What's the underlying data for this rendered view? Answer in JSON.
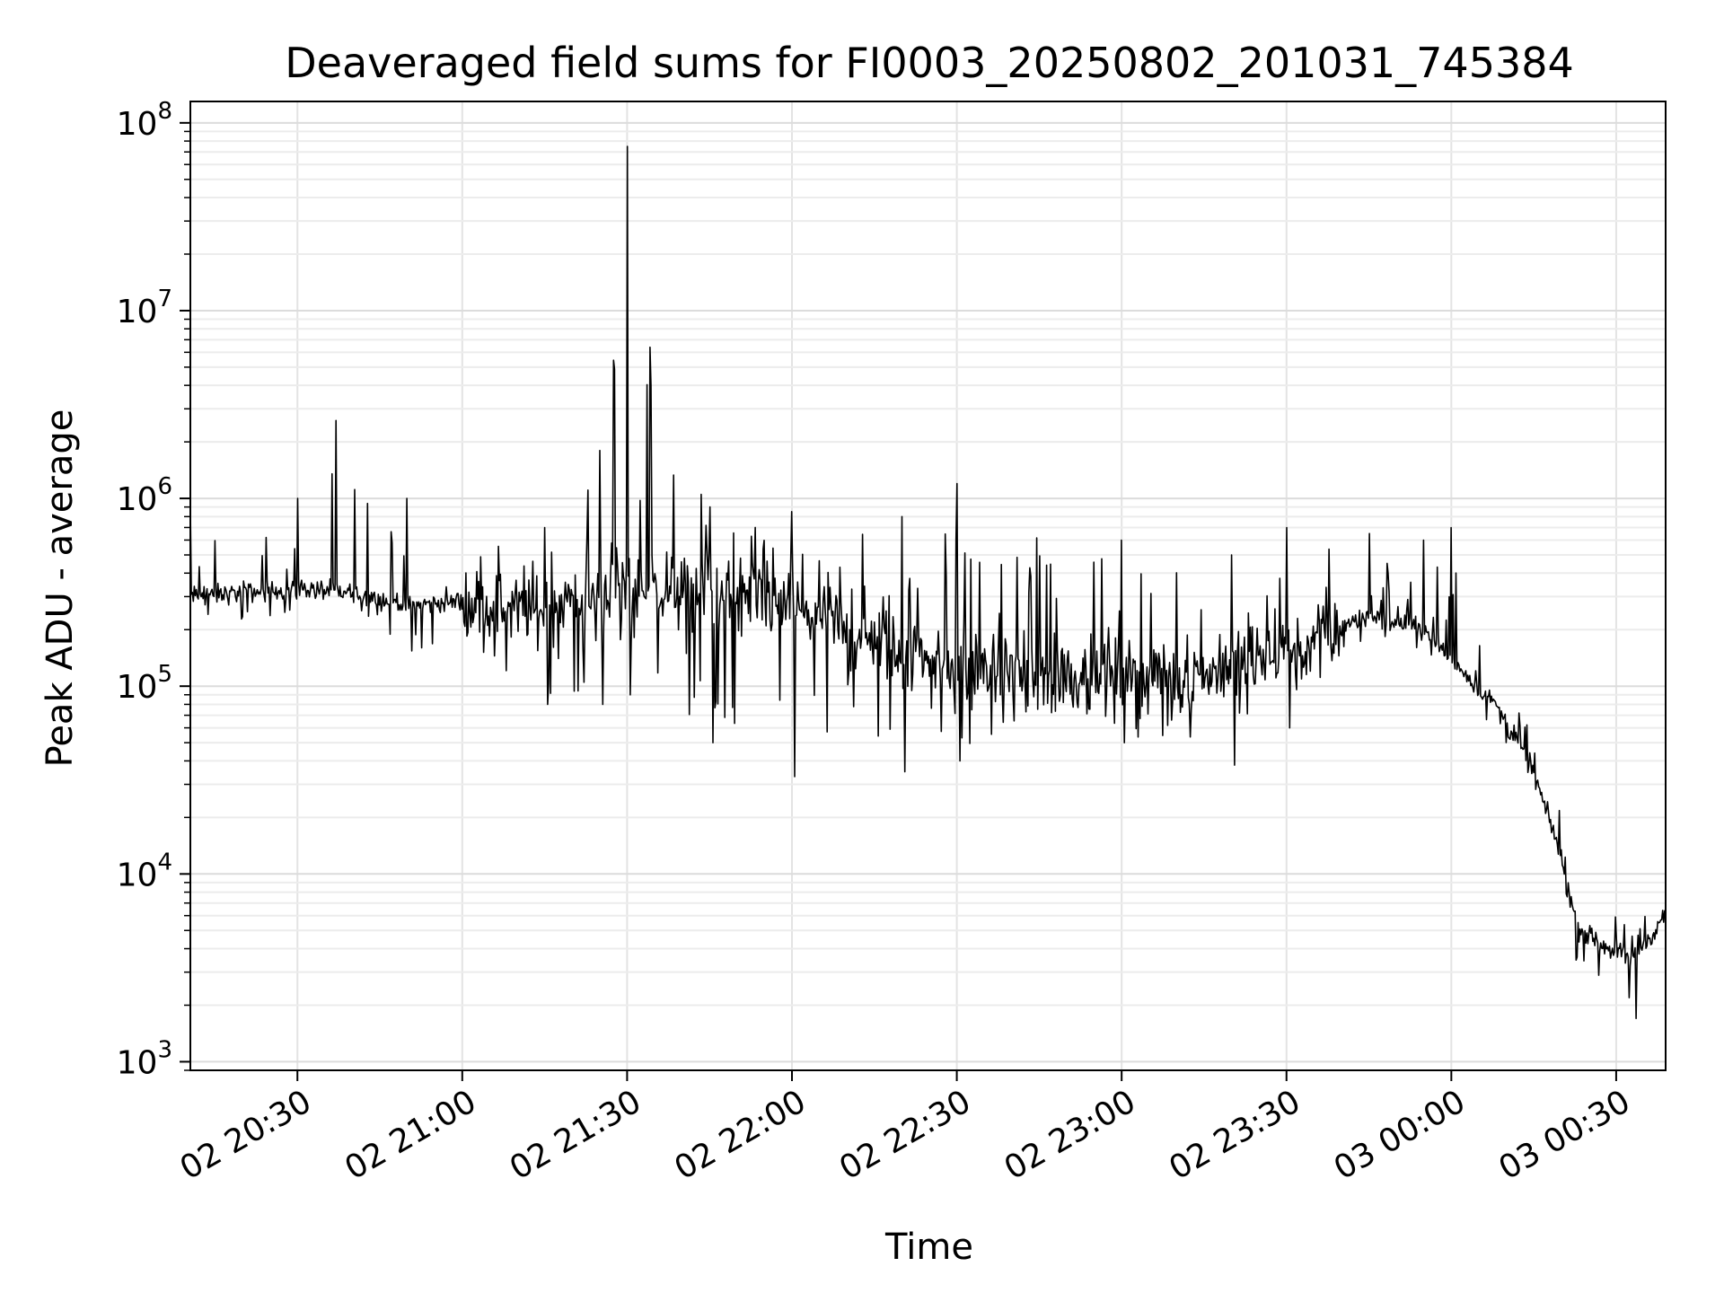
{
  "chart_data": {
    "type": "line",
    "title": "Deaveraged field sums for FI0003_20250802_201031_745384",
    "xlabel": "Time",
    "ylabel": "Peak ADU - average",
    "yscale": "log",
    "ylim": [
      900,
      130000000
    ],
    "xlim": [
      "2025-08-02 20:10:31",
      "2025-08-03 00:39:00"
    ],
    "grid": "both-major-and-minor",
    "line_color": "#000000",
    "x_ticks": [
      {
        "label": "02 20:30",
        "time": "2025-08-02 20:30"
      },
      {
        "label": "02 21:00",
        "time": "2025-08-02 21:00"
      },
      {
        "label": "02 21:30",
        "time": "2025-08-02 21:30"
      },
      {
        "label": "02 22:00",
        "time": "2025-08-02 22:00"
      },
      {
        "label": "02 22:30",
        "time": "2025-08-02 22:30"
      },
      {
        "label": "02 23:00",
        "time": "2025-08-02 23:00"
      },
      {
        "label": "02 23:30",
        "time": "2025-08-02 23:30"
      },
      {
        "label": "03 00:00",
        "time": "2025-08-03 00:00"
      },
      {
        "label": "03 00:30",
        "time": "2025-08-03 00:30"
      }
    ],
    "y_ticks": [
      {
        "base": "10",
        "exp": "3",
        "value": 1000
      },
      {
        "base": "10",
        "exp": "4",
        "value": 10000
      },
      {
        "base": "10",
        "exp": "5",
        "value": 100000
      },
      {
        "base": "10",
        "exp": "6",
        "value": 1000000
      },
      {
        "base": "10",
        "exp": "7",
        "value": 10000000
      },
      {
        "base": "10",
        "exp": "8",
        "value": 100000000
      }
    ],
    "series_profile": [
      {
        "time": "2025-08-02 20:10:31",
        "baseline": 300000,
        "spike_max": 900000,
        "dip_min": 200000
      },
      {
        "time": "2025-08-02 20:30",
        "baseline": 330000,
        "spike_max": 1000000,
        "dip_min": 240000
      },
      {
        "time": "2025-08-02 20:37",
        "baseline": 320000,
        "spike_max": 2600000,
        "dip_min": 250000
      },
      {
        "time": "2025-08-02 20:50",
        "baseline": 270000,
        "spike_max": 1000000,
        "dip_min": 140000
      },
      {
        "time": "2025-08-02 21:00",
        "baseline": 280000,
        "spike_max": 600000,
        "dip_min": 150000
      },
      {
        "time": "2025-08-02 21:15",
        "baseline": 250000,
        "spike_max": 700000,
        "dip_min": 80000
      },
      {
        "time": "2025-08-02 21:25",
        "baseline": 300000,
        "spike_max": 1800000,
        "dip_min": 80000
      },
      {
        "time": "2025-08-02 21:30",
        "baseline": 350000,
        "spike_max": 75000000,
        "dip_min": 90000
      },
      {
        "time": "2025-08-02 21:45",
        "baseline": 300000,
        "spike_max": 900000,
        "dip_min": 50000
      },
      {
        "time": "2025-08-02 22:00",
        "baseline": 250000,
        "spike_max": 850000,
        "dip_min": 33000
      },
      {
        "time": "2025-08-02 22:20",
        "baseline": 150000,
        "spike_max": 800000,
        "dip_min": 35000
      },
      {
        "time": "2025-08-02 22:30",
        "baseline": 120000,
        "spike_max": 1200000,
        "dip_min": 40000
      },
      {
        "time": "2025-08-02 23:00",
        "baseline": 110000,
        "spike_max": 600000,
        "dip_min": 50000
      },
      {
        "time": "2025-08-02 23:20",
        "baseline": 120000,
        "spike_max": 500000,
        "dip_min": 38000
      },
      {
        "time": "2025-08-02 23:30",
        "baseline": 150000,
        "spike_max": 700000,
        "dip_min": 60000
      },
      {
        "time": "2025-08-02 23:45",
        "baseline": 240000,
        "spike_max": 650000,
        "dip_min": 180000
      },
      {
        "time": "2025-08-02 23:55",
        "baseline": 200000,
        "spike_max": 600000,
        "dip_min": 150000
      },
      {
        "time": "2025-08-03 00:00",
        "baseline": 140000,
        "spike_max": 700000,
        "dip_min": 110000
      },
      {
        "time": "2025-08-03 00:08",
        "baseline": 80000,
        "spike_max": 170000,
        "dip_min": 55000
      },
      {
        "time": "2025-08-03 00:15",
        "baseline": 35000,
        "spike_max": 60000,
        "dip_min": 25000
      },
      {
        "time": "2025-08-03 00:20",
        "baseline": 12000,
        "spike_max": 25000,
        "dip_min": 6000
      },
      {
        "time": "2025-08-03 00:23",
        "baseline": 5000,
        "spike_max": 9000,
        "dip_min": 3000
      },
      {
        "time": "2025-08-03 00:33",
        "baseline": 3500,
        "spike_max": 6000,
        "dip_min": 1700
      },
      {
        "time": "2025-08-03 00:39",
        "baseline": 6000,
        "spike_max": 8000,
        "dip_min": 3500
      }
    ]
  }
}
